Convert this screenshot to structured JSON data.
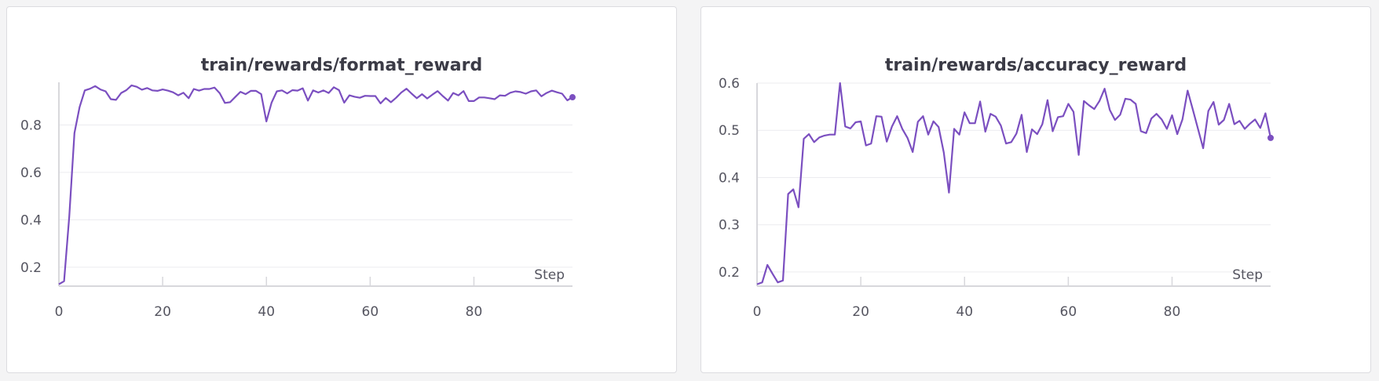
{
  "colors": {
    "line": "#7b4fc0",
    "grid": "#ececef",
    "axis": "#d8d8dc"
  },
  "chart_data": [
    {
      "type": "line",
      "title": "train/rewards/format_reward",
      "xlabel": "Step",
      "ylabel": "",
      "xlim": [
        0,
        99
      ],
      "ylim": [
        0.12,
        0.98
      ],
      "xticks": [
        0,
        20,
        40,
        60,
        80
      ],
      "yticks": [
        0.2,
        0.4,
        0.6,
        0.8
      ],
      "ytick_labels": [
        "0.2",
        "0.4",
        "0.6",
        "0.8"
      ],
      "grid": true,
      "series": [
        {
          "values": [
            0.128,
            0.141,
            0.414,
            0.766,
            0.876,
            0.946,
            0.953,
            0.964,
            0.95,
            0.942,
            0.909,
            0.906,
            0.935,
            0.947,
            0.967,
            0.961,
            0.949,
            0.956,
            0.946,
            0.944,
            0.95,
            0.945,
            0.938,
            0.925,
            0.936,
            0.913,
            0.952,
            0.945,
            0.952,
            0.952,
            0.958,
            0.934,
            0.893,
            0.896,
            0.918,
            0.94,
            0.93,
            0.944,
            0.944,
            0.93,
            0.815,
            0.894,
            0.942,
            0.946,
            0.933,
            0.947,
            0.945,
            0.955,
            0.903,
            0.946,
            0.937,
            0.946,
            0.935,
            0.959,
            0.947,
            0.894,
            0.925,
            0.919,
            0.915,
            0.923,
            0.922,
            0.922,
            0.891,
            0.914,
            0.896,
            0.915,
            0.937,
            0.953,
            0.932,
            0.913,
            0.93,
            0.912,
            0.928,
            0.943,
            0.922,
            0.903,
            0.935,
            0.925,
            0.943,
            0.901,
            0.901,
            0.916,
            0.916,
            0.913,
            0.909,
            0.925,
            0.923,
            0.936,
            0.942,
            0.939,
            0.932,
            0.942,
            0.946,
            0.921,
            0.935,
            0.945,
            0.938,
            0.932,
            0.904,
            0.917
          ]
        }
      ]
    },
    {
      "type": "line",
      "title": "train/rewards/accuracy_reward",
      "xlabel": "Step",
      "ylabel": "",
      "xlim": [
        0,
        99
      ],
      "ylim": [
        0.17,
        0.6
      ],
      "xticks": [
        0,
        20,
        40,
        60,
        80
      ],
      "yticks": [
        0.2,
        0.3,
        0.4,
        0.5,
        0.6
      ],
      "ytick_labels": [
        "0.2",
        "0.3",
        "0.4",
        "0.5",
        "0.6"
      ],
      "grid": true,
      "series": [
        {
          "values": [
            0.174,
            0.178,
            0.215,
            0.196,
            0.178,
            0.182,
            0.365,
            0.375,
            0.337,
            0.482,
            0.492,
            0.475,
            0.485,
            0.489,
            0.491,
            0.491,
            0.6,
            0.508,
            0.504,
            0.517,
            0.519,
            0.468,
            0.472,
            0.53,
            0.529,
            0.476,
            0.508,
            0.53,
            0.503,
            0.484,
            0.454,
            0.518,
            0.53,
            0.491,
            0.519,
            0.507,
            0.453,
            0.368,
            0.503,
            0.491,
            0.538,
            0.515,
            0.515,
            0.561,
            0.497,
            0.535,
            0.529,
            0.51,
            0.472,
            0.475,
            0.493,
            0.533,
            0.454,
            0.502,
            0.492,
            0.513,
            0.564,
            0.498,
            0.528,
            0.53,
            0.556,
            0.539,
            0.448,
            0.562,
            0.553,
            0.545,
            0.562,
            0.588,
            0.543,
            0.522,
            0.533,
            0.567,
            0.565,
            0.556,
            0.498,
            0.494,
            0.525,
            0.535,
            0.523,
            0.503,
            0.532,
            0.492,
            0.523,
            0.584,
            0.544,
            0.503,
            0.462,
            0.541,
            0.56,
            0.512,
            0.522,
            0.556,
            0.513,
            0.52,
            0.503,
            0.514,
            0.523,
            0.505,
            0.536,
            0.484
          ]
        }
      ]
    }
  ]
}
